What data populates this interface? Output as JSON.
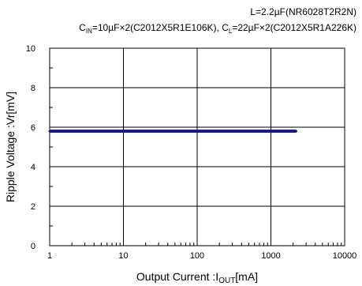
{
  "chart_data": {
    "type": "line",
    "annotations": [
      "L=2.2µF(NR6028T2R2N)"
    ],
    "cin_prefix": "C",
    "cin_sub": "IN",
    "cin_text": "=10µF×2(C2012X5R1E106K), C",
    "cl_sub": "L",
    "cl_text": "=22µF×2(C2012X5R1A226K)",
    "xlabel_prefix": "Output Current :I",
    "xlabel_sub": "OUT",
    "xlabel_suffix": "[mA]",
    "ylabel": "Ripple Voltage :Vr[mV]",
    "x_scale": "log",
    "xlim": [
      1,
      10000
    ],
    "ylim": [
      0,
      10
    ],
    "x_ticks": [
      "1",
      "10",
      "100",
      "1000",
      "10000"
    ],
    "y_ticks": [
      "0",
      "2",
      "4",
      "6",
      "8",
      "10"
    ],
    "grid": true,
    "series": [
      {
        "color": "#1a1a80",
        "x": [
          1,
          10,
          50,
          100,
          200,
          600,
          1000,
          2200
        ],
        "y": [
          5.8,
          5.8,
          5.8,
          5.8,
          5.8,
          5.8,
          5.8,
          5.8
        ]
      }
    ]
  }
}
